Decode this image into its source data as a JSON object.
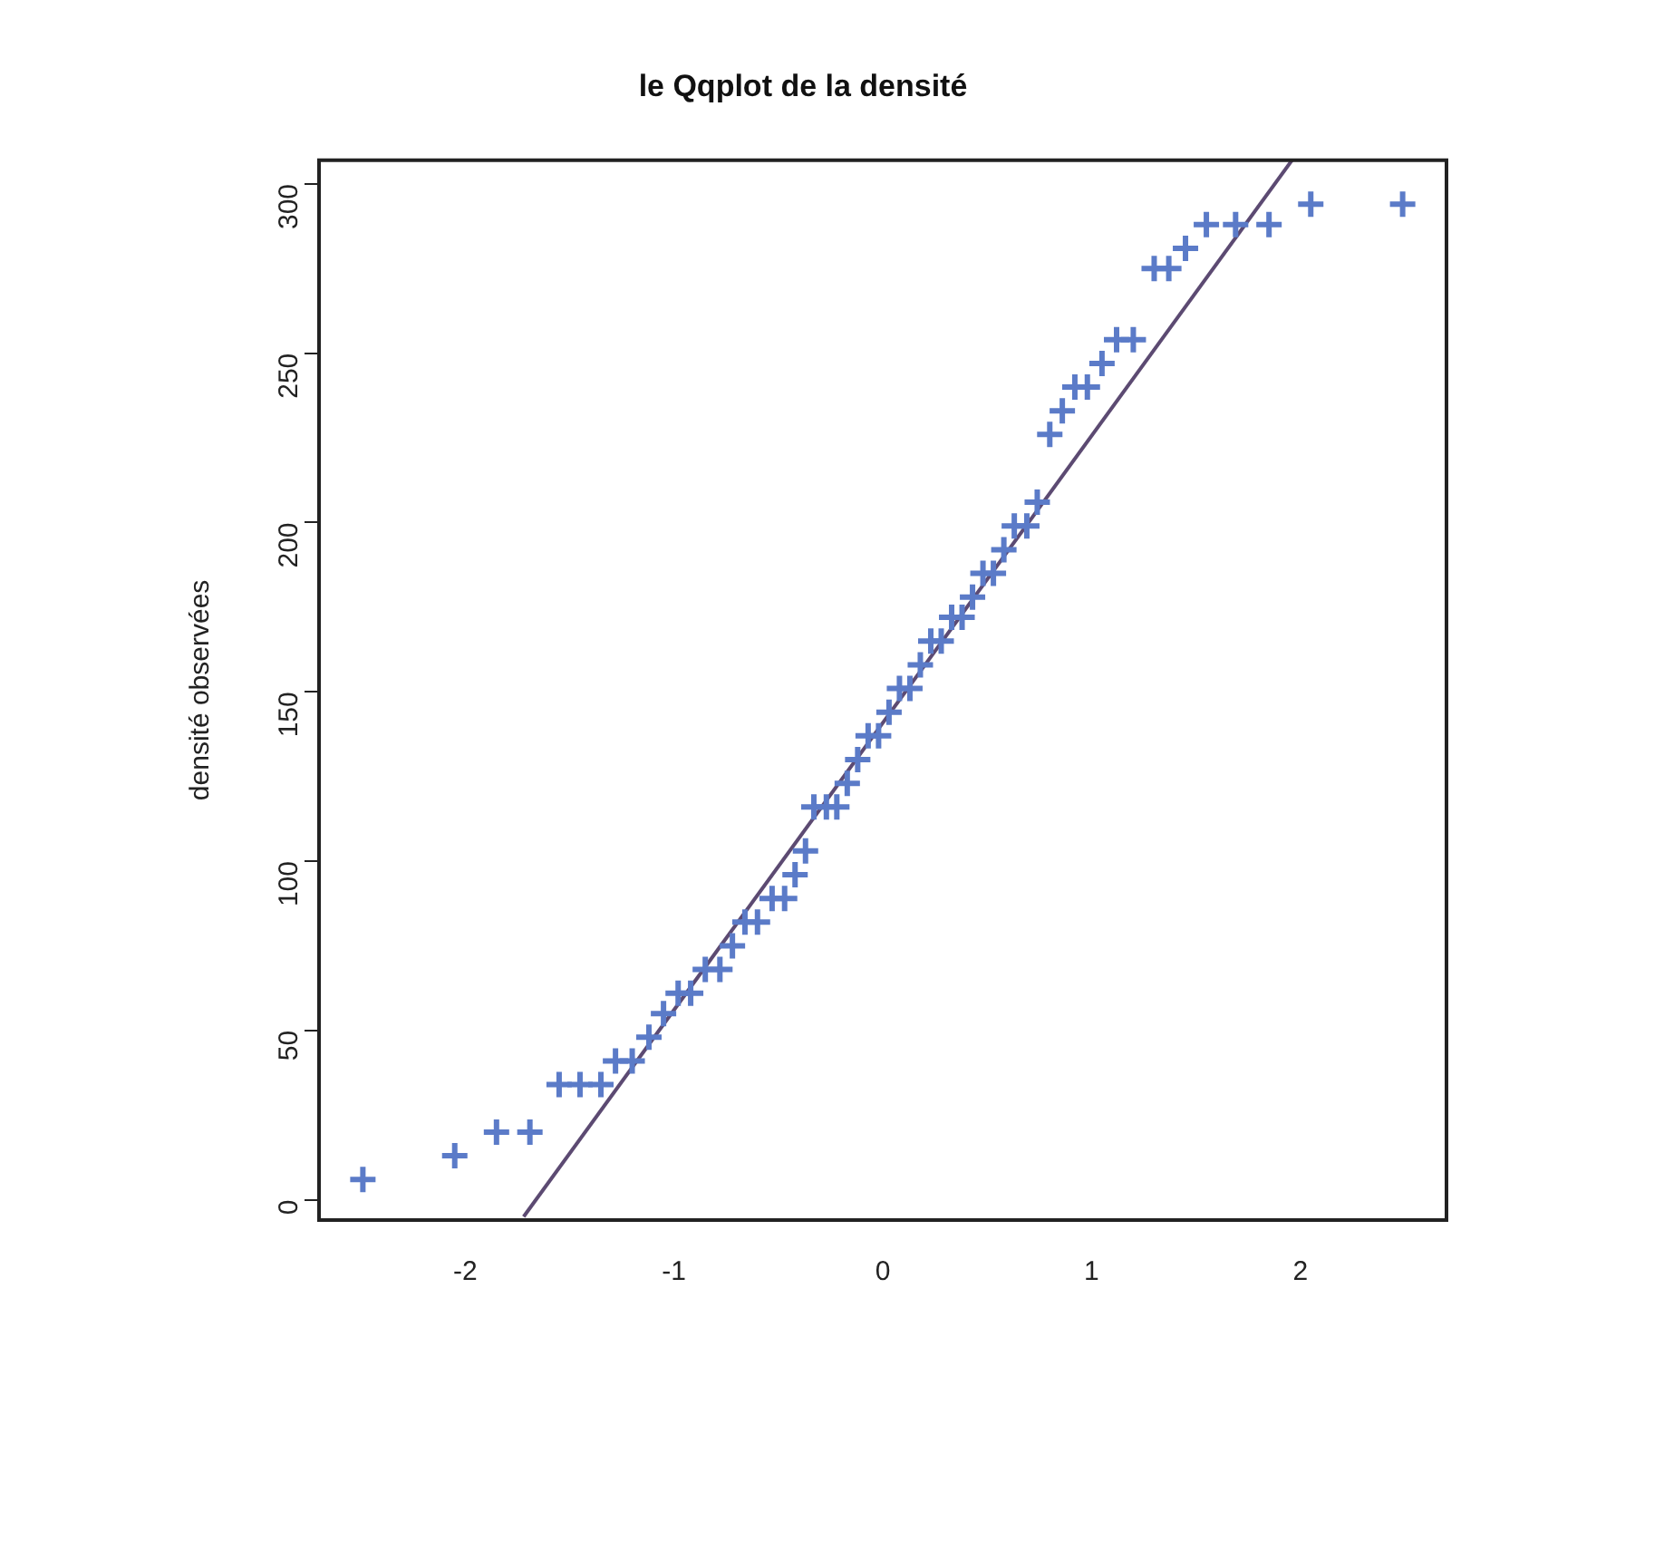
{
  "chart_data": {
    "type": "scatter",
    "title": "le Qqplot de la densité",
    "ylabel": "densité observées",
    "xlim": [
      -2.7,
      2.7
    ],
    "xticks": [
      -2,
      -1,
      0,
      1,
      2
    ],
    "ylim": [
      -6,
      307
    ],
    "yticks": [
      0,
      50,
      100,
      150,
      200,
      250,
      300
    ],
    "series": [
      {
        "marker": "cross",
        "color": "#5b7bc8",
        "x": [
          -2.49,
          -2.05,
          -1.85,
          -1.69,
          -1.55,
          -1.45,
          -1.35,
          -1.28,
          -1.2,
          -1.12,
          -1.05,
          -0.98,
          -0.92,
          -0.85,
          -0.78,
          -0.72,
          -0.66,
          -0.6,
          -0.53,
          -0.47,
          -0.42,
          -0.37,
          -0.33,
          -0.27,
          -0.22,
          -0.17,
          -0.12,
          -0.07,
          -0.02,
          0.03,
          0.08,
          0.13,
          0.18,
          0.23,
          0.28,
          0.33,
          0.38,
          0.43,
          0.48,
          0.53,
          0.58,
          0.63,
          0.69,
          0.74,
          0.8,
          0.86,
          0.92,
          0.98,
          1.05,
          1.12,
          1.2,
          1.3,
          1.37,
          1.45,
          1.55,
          1.69,
          1.85,
          2.05,
          2.49
        ],
        "values": [
          6,
          13,
          20,
          20,
          34,
          34,
          34,
          41,
          41,
          48,
          55,
          61,
          61,
          68,
          68,
          75,
          82,
          82,
          89,
          89,
          96,
          103,
          116,
          116,
          116,
          123,
          130,
          137,
          137,
          144,
          151,
          151,
          158,
          165,
          165,
          172,
          172,
          178,
          185,
          185,
          192,
          199,
          199,
          206,
          226,
          233,
          240,
          240,
          247,
          254,
          254,
          275,
          275,
          281,
          288,
          288,
          288,
          294,
          294
        ]
      },
      {
        "type": "line",
        "color": "#5c4a72",
        "x": [
          -1.72,
          1.96
        ],
        "values": [
          -5,
          307
        ]
      }
    ]
  }
}
